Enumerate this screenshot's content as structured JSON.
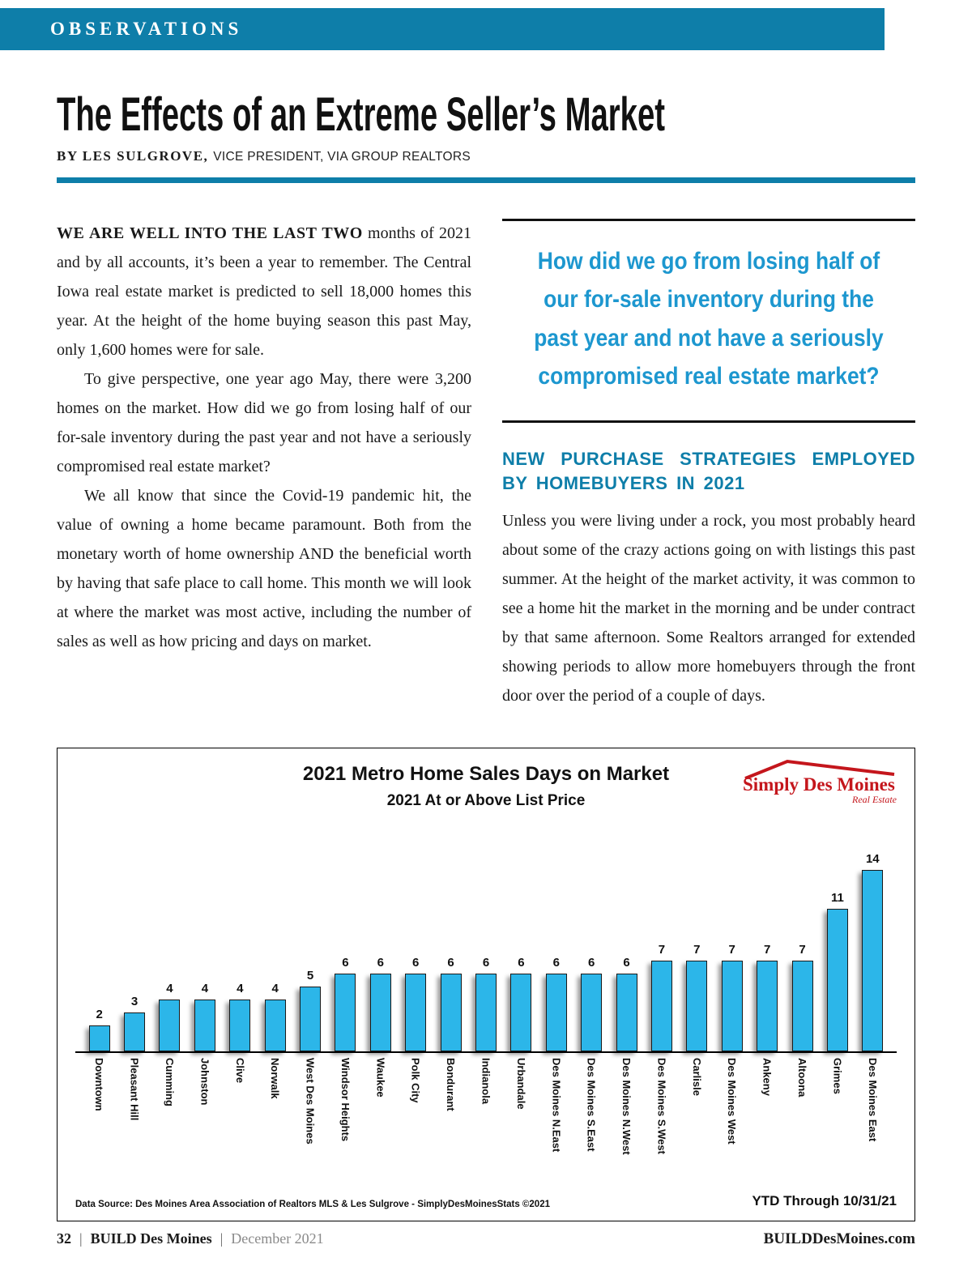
{
  "theme": {
    "accent": "#0e7ea9",
    "quote_blue": "#1d97cf",
    "bar_cyan": "#2cb6e9",
    "logo_red": "#c4161c"
  },
  "page": {
    "kicker": "OBSERVATIONS",
    "title": "The Effects of an Extreme Seller’s Market",
    "byline_name": "BY LES SULGROVE,",
    "byline_role": "VICE PRESIDENT, VIA GROUP REALTORS",
    "footer": {
      "page_number": "32",
      "sep": "|",
      "magazine": "BUILD Des Moines",
      "issue": "December 2021",
      "website": "BUILDDesMoines.com"
    }
  },
  "article": {
    "lead": "WE ARE WELL INTO THE LAST TWO",
    "para1_rest": " months of 2021 and by all accounts, it’s been a year to remember. The Central Iowa real estate market is predicted to sell 18,000 homes this year. At the height of the home buying season this past May, only 1,600 homes were for sale.",
    "para2": "To give perspective, one year ago May, there were 3,200 homes on the market. How did we go from losing half of our for-sale inventory during the past year and not have a seriously compromised real estate market?",
    "para3": "We all know that since the Covid-19 pandemic hit, the value of owning a home became paramount. Both from the monetary worth of home ownership AND the beneficial worth by having that safe place to call home. This month we will look at where the market was most active, including the number of sales as well as how pricing and days on market.",
    "pull_quote": "How did we go from losing half of our for-sale inventory during the past year and not have a seriously compromised real estate market?",
    "section_heading": "NEW PURCHASE STRATEGIES EMPLOYED BY HOMEBUYERS IN 2021",
    "section_para": "Unless you were living under a rock, you most probably heard about some of the crazy actions going on with listings this past summer. At the height of the market activity, it was common to see a home hit the market in the morning and be under contract by that same afternoon. Some Realtors arranged for extended showing periods to allow more homebuyers through the front door over the period of a couple of days."
  },
  "chart_data": {
    "type": "bar",
    "title": "2021 Metro Home Sales Days on Market",
    "subtitle": "2021 At or Above List Price",
    "categories": [
      "Downtown",
      "Pleasant Hill",
      "Cumming",
      "Johnston",
      "Clive",
      "Norwalk",
      "West Des Moines",
      "Windsor Heights",
      "Waukee",
      "Polk City",
      "Bondurant",
      "Indianola",
      "Urbandale",
      "Des Moines N.East",
      "Des Moines S.East",
      "Des Moines N.West",
      "Des Moines S.West",
      "Carlisle",
      "Des Moines West",
      "Ankeny",
      "Altoona",
      "Grimes",
      "Des Moines East"
    ],
    "values": [
      2,
      3,
      4,
      4,
      4,
      4,
      5,
      6,
      6,
      6,
      6,
      6,
      6,
      6,
      6,
      6,
      7,
      7,
      7,
      7,
      7,
      11,
      14
    ],
    "ylabel": "Days on Market",
    "ylim": [
      0,
      14
    ],
    "grid": false,
    "legend": false,
    "value_labels": true,
    "bar_color": "#2cb6e9",
    "logo_text": "Simply Des Moines",
    "logo_subtext": "Real Estate",
    "source_note": "Data Source: Des Moines Area Association of Realtors MLS & Les Sulgrove - SimplyDesMoinesStats ©2021",
    "ytd_note": "YTD Through 10/31/21"
  }
}
